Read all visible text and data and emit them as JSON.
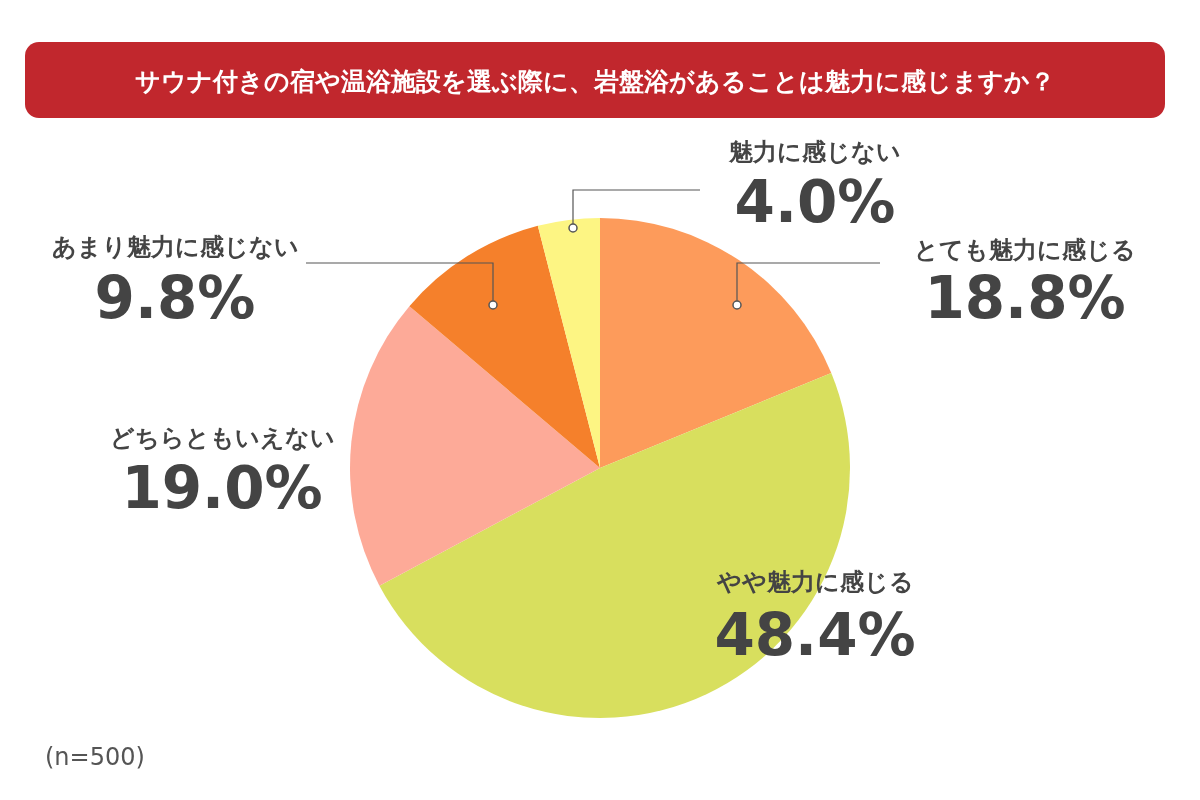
{
  "chart_data": {
    "type": "pie",
    "title": "サウナ付きの宿や温浴施設を選ぶ際に、岩盤浴があることは魅力に感じますか？",
    "categories": [
      "とても魅力に感じる",
      "やや魅力に感じる",
      "どちらともいえない",
      "あまり魅力に感じない",
      "魅力に感じない"
    ],
    "values": [
      18.8,
      48.4,
      19.0,
      9.8,
      4.0
    ],
    "colors": [
      "#fd9b5b",
      "#d8df5e",
      "#fdaa98",
      "#f5802b",
      "#fdf583"
    ],
    "value_labels": [
      "18.8%",
      "48.4%",
      "19.0%",
      "9.8%",
      "4.0%"
    ],
    "annotations": [
      "(n=500)"
    ]
  }
}
